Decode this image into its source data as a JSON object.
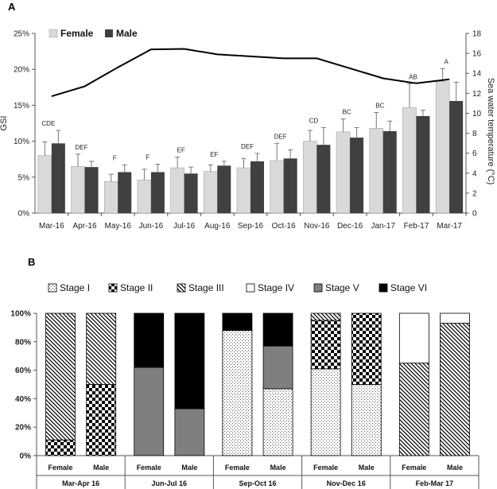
{
  "panels": {
    "a_label": "A",
    "b_label": "B"
  },
  "colors": {
    "female": "#d9d9d9",
    "male": "#404040",
    "line": "#000000"
  },
  "chart_data": [
    {
      "type": "bar",
      "ylabel": "GSI",
      "y2label": "Sea water temperature (°C)",
      "ylim": [
        0,
        25
      ],
      "y2lim": [
        0,
        18
      ],
      "yticks": [
        "0%",
        "5%",
        "10%",
        "15%",
        "20%",
        "25%"
      ],
      "y2ticks": [
        "0",
        "2",
        "4",
        "6",
        "8",
        "10",
        "12",
        "14",
        "16",
        "18"
      ],
      "legend": "top-left",
      "categories": [
        "Mar-16",
        "Apr-16",
        "May-16",
        "Jun-16",
        "Jul-16",
        "Aug-16",
        "Sep-16",
        "Oct-16",
        "Nov-16",
        "Dec-16",
        "Jan-17",
        "Feb-17",
        "Mar-17"
      ],
      "series": [
        {
          "name": "Female",
          "values": [
            8.0,
            6.5,
            4.4,
            4.6,
            6.3,
            5.8,
            6.3,
            7.3,
            10.0,
            11.3,
            11.8,
            14.7,
            18.3
          ],
          "errors": [
            1.9,
            1.7,
            1.0,
            1.5,
            1.5,
            0.9,
            1.3,
            2.4,
            1.5,
            1.8,
            2.2,
            3.3,
            1.8
          ]
        },
        {
          "name": "Male",
          "values": [
            9.7,
            6.4,
            5.7,
            5.7,
            5.5,
            6.6,
            7.2,
            7.6,
            9.5,
            10.5,
            11.4,
            13.5,
            15.6
          ],
          "errors": [
            1.8,
            0.8,
            1.0,
            1.1,
            0.9,
            0.6,
            1.1,
            1.2,
            2.4,
            1.4,
            1.4,
            0.8,
            2.6
          ]
        }
      ],
      "line": {
        "values": [
          11.7,
          12.7,
          14.6,
          16.4,
          16.45,
          15.9,
          15.7,
          15.5,
          15.5,
          14.5,
          13.5,
          13.0,
          13.4
        ]
      },
      "significance": [
        "CDE",
        "DEF",
        "F",
        "F",
        "EF",
        "EF",
        "DEF",
        "DEF",
        "CD",
        "BC",
        "BC",
        "AB",
        "A"
      ]
    },
    {
      "type": "bar",
      "stacked": true,
      "ylim": [
        0,
        100
      ],
      "yticks": [
        "0%",
        "20%",
        "40%",
        "60%",
        "80%",
        "100%"
      ],
      "legend": "top",
      "legend_entries": [
        "Stage I",
        "Stage II",
        "Stage III",
        "Stage IV",
        "Stage V",
        "Stage VI"
      ],
      "groups": [
        "Mar-Apr 16",
        "Jun-Jul 16",
        "Sep-Oct 16",
        "Nov-Dec 16",
        "Feb-Mar 17"
      ],
      "sex_labels": [
        "Female",
        "Male"
      ],
      "bars": [
        {
          "group": "Mar-Apr 16",
          "sex": "Female",
          "stages": [
            0,
            11,
            89,
            0,
            0,
            0
          ]
        },
        {
          "group": "Mar-Apr 16",
          "sex": "Male",
          "stages": [
            0,
            50,
            50,
            0,
            0,
            0
          ]
        },
        {
          "group": "Jun-Jul 16",
          "sex": "Female",
          "stages": [
            0,
            0,
            0,
            0,
            62,
            38
          ]
        },
        {
          "group": "Jun-Jul 16",
          "sex": "Male",
          "stages": [
            0,
            0,
            0,
            0,
            33,
            67
          ]
        },
        {
          "group": "Sep-Oct 16",
          "sex": "Female",
          "stages": [
            88,
            0,
            0,
            0,
            0,
            12
          ]
        },
        {
          "group": "Sep-Oct 16",
          "sex": "Male",
          "stages": [
            47,
            0,
            0,
            0,
            30,
            23
          ]
        },
        {
          "group": "Nov-Dec 16",
          "sex": "Female",
          "stages": [
            61,
            34,
            5,
            0,
            0,
            0
          ]
        },
        {
          "group": "Nov-Dec 16",
          "sex": "Male",
          "stages": [
            50,
            50,
            0,
            0,
            0,
            0
          ]
        },
        {
          "group": "Feb-Mar 17",
          "sex": "Female",
          "stages": [
            0,
            0,
            65,
            35,
            0,
            0
          ]
        },
        {
          "group": "Feb-Mar 17",
          "sex": "Male",
          "stages": [
            0,
            0,
            93,
            7,
            0,
            0
          ]
        }
      ]
    }
  ]
}
